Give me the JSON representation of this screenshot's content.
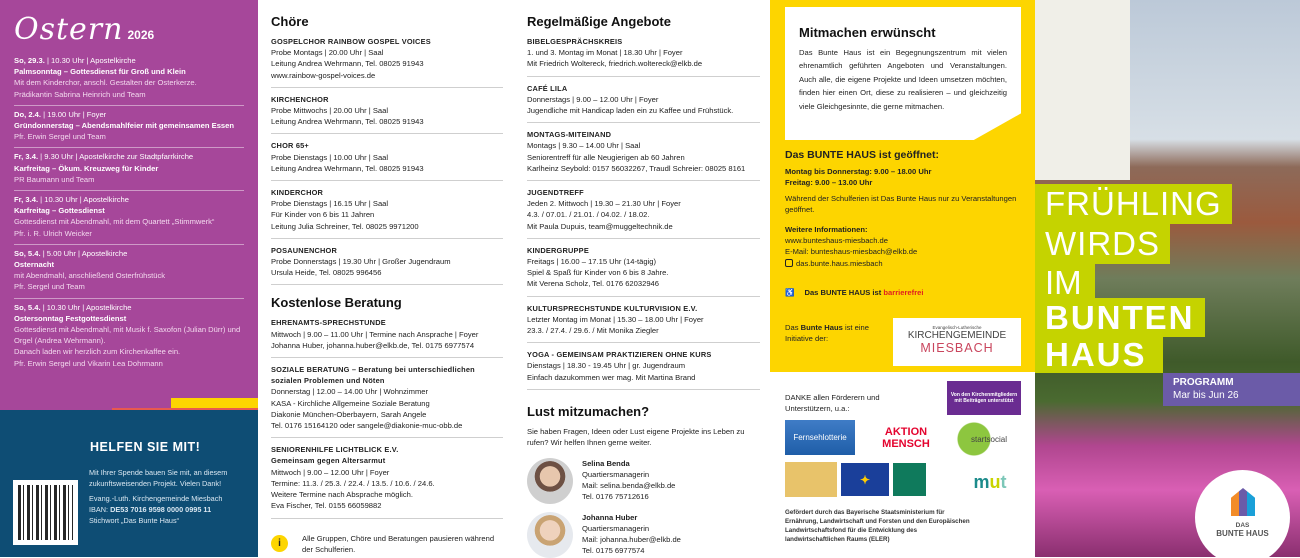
{
  "easter": {
    "title": "Ostern",
    "year": "2026",
    "events": [
      {
        "when": "So, 29.3.",
        "time": "10.30 Uhr",
        "place": "Apostelkirche",
        "title": "Palmsonntag – Gottesdienst für Groß und Klein",
        "lines": [
          "Mit dem Kinderchor, anschl. Gestalten der Osterkerze.",
          "Prädikantin Sabrina Heinrich und Team"
        ]
      },
      {
        "when": "Do, 2.4.",
        "time": "19.00 Uhr",
        "place": "Foyer",
        "title": "Gründonnerstag  – Abendsmahlfeier mit gemeinsamen Essen",
        "lines": [
          "Pfr. Erwin Sergel und Team"
        ]
      },
      {
        "when": "Fr, 3.4.",
        "time": "9.30 Uhr",
        "place": "Apostelkirche zur Stadtpfarrkirche",
        "title": "Karfreitag – Ökum. Kreuzweg für Kinder",
        "lines": [
          "PR Baumann und Team"
        ]
      },
      {
        "when": "Fr, 3.4.",
        "time": "10.30 Uhr",
        "place": "Apostelkirche",
        "title": "Karfreitag – Gottesdienst",
        "lines": [
          "Gottesdienst mit Abendmahl, mit dem Quartett „Stimmwerk“",
          "Pfr. i. R. Ulrich Weicker"
        ]
      },
      {
        "when": "So, 5.4.",
        "time": "5.00 Uhr",
        "place": "Apostelkirche",
        "title": "Osternacht",
        "lines": [
          "mit Abendmahl, anschließend Osterfrühstück",
          "Pfr. Sergel und Team"
        ]
      },
      {
        "when": "So, 5.4.",
        "time": "10.30 Uhr",
        "place": "Apostelkirche",
        "title": "Ostersonntag Festgottesdienst",
        "lines": [
          "Gottesdienst mit Abendmahl, mit Musik f. Saxofon (Julian Dürr) und Orgel (Andrea Wehrmann).",
          "Danach laden wir herzlich zum Kirchenkaffee ein.",
          "Pfr. Erwin Sergel und Vikarin Lea Dohrmann"
        ]
      }
    ]
  },
  "help": {
    "title": "HELFEN SIE MIT!",
    "text1": "Mit Ihrer Spende bauen Sie mit, an diesem zukunftsweisenden Projekt. Vielen Dank!",
    "org": "Evang.-Luth. Kirchengemeinde Miesbach",
    "iban_label": "IBAN: ",
    "iban": "DE53 7016 9598 0000 0995 11",
    "keyword": "Stichwort „Das Bunte Haus“"
  },
  "choirs": {
    "title": "Chöre",
    "items": [
      {
        "t": "GOSPELCHOR RAINBOW GOSPEL VOICES",
        "lines": [
          "Probe Montags | 20.00 Uhr | Saal",
          "Leitung Andrea Wehrmann, Tel. 08025 91943",
          "www.rainbow-gospel-voices.de"
        ]
      },
      {
        "t": "KIRCHENCHOR",
        "lines": [
          "Probe Mittwochs | 20.00 Uhr | Saal",
          "Leitung Andrea Wehrmann, Tel. 08025 91943"
        ]
      },
      {
        "t": "CHOR 65+",
        "lines": [
          "Probe Dienstags | 10.00 Uhr | Saal",
          "Leitung Andrea Wehrmann, Tel. 08025 91943"
        ]
      },
      {
        "t": "KINDERCHOR",
        "lines": [
          "Probe Dienstags | 16.15 Uhr | Saal",
          "Für Kinder von 6 bis 11 Jahren",
          "Leitung Julia Schreiner, Tel. 08025  9971200"
        ]
      },
      {
        "t": "POSAUNENCHOR",
        "lines": [
          "Probe Donnerstags | 19.30 Uhr | Großer Jugendraum",
          "Ursula Heide, Tel. 08025 996456"
        ]
      }
    ]
  },
  "advice": {
    "title": "Kostenlose Beratung",
    "items": [
      {
        "t": "EHRENAMTS-SPRECHSTUNDE",
        "lines": [
          "Mittwoch | 9.00 – 11.00 Uhr | Termine nach Ansprache | Foyer",
          "Johanna Huber, johanna.huber@elkb.de, Tel. 0175 6977574"
        ]
      },
      {
        "t": "SOZIALE BERATUNG – Beratung bei unterschiedlichen sozialen Problemen und Nöten",
        "lines": [
          "Donnerstag | 12.00 – 14.00 Uhr | Wohnzimmer",
          "KASA - Kirchliche Allgemeine Soziale Beratung",
          "Diakonie München-Oberbayern, Sarah Angele",
          "Tel. 0176 15164120 oder sangele@diakonie-muc-obb.de"
        ]
      },
      {
        "t": "SENIORENHILFE LICHTBLICK E.V.",
        "sub": "Gemeinsam gegen Altersarmut",
        "lines": [
          "Mittwoch | 9.00 – 12.00 Uhr | Foyer",
          "Termine: 11.3. / 25.3. / 22.4. / 13.5. / 10.6. / 24.6.",
          "Weitere Termine nach Absprache möglich.",
          "Eva Fischer, Tel. 0155 66059882"
        ]
      }
    ],
    "note": "Alle Gruppen, Chöre und Beratungen pausieren während der Schulferien."
  },
  "regular": {
    "title": "Regelmäßige Angebote",
    "items": [
      {
        "t": "BIBELGESPRÄCHSKREIS",
        "lines": [
          "1. und 3. Montag im Monat | 18.30 Uhr | Foyer",
          "Mit Friedrich Woltereck, friedrich.woltereck@elkb.de"
        ]
      },
      {
        "t": "CAFÉ LILA",
        "lines": [
          "Donnerstags | 9.00 – 12.00 Uhr | Foyer",
          "Jugendliche mit Handicap laden ein zu Kaffee und Frühstück."
        ]
      },
      {
        "t": "MONTAGS-MITEINAND",
        "lines": [
          "Montags | 9.30 – 14.00 Uhr | Saal",
          "Seniorentreff für alle Neugierigen ab 60 Jahren",
          "Karlheinz Seybold: 0157 56032267, Traudl Schreier: 08025 8161"
        ]
      },
      {
        "t": "JUGENDTREFF",
        "lines": [
          "Jeden 2. Mittwoch | 19.30 – 21.30 Uhr | Foyer",
          "4.3. / 07.01. / 21.01. / 04.02. / 18.02.",
          "Mit Paula Dupuis, team@muggeltechnik.de"
        ]
      },
      {
        "t": "KINDERGRUPPE",
        "lines": [
          "Freitags | 16.00 – 17.15 Uhr (14-tägig)",
          "Spiel & Spaß für Kinder von 6 bis 8 Jahre.",
          "Mit Verena Scholz, Tel. 0176 62032946"
        ]
      },
      {
        "t": "KULTURSPRECHSTUNDE KULTURVISION E.V.",
        "lines": [
          "Letzter Montag im Monat | 15.30 – 18.00 Uhr | Foyer",
          "23.3. / 27.4. / 29.6. / Mit Monika Ziegler"
        ]
      },
      {
        "t": "YOGA - GEMEINSAM PRAKTIZIEREN OHNE KURS",
        "lines": [
          "Dienstags | 18.30 - 19.45 Uhr | gr. Jugendraum",
          "Einfach dazukommen wer mag. Mit Martina Brand"
        ]
      }
    ]
  },
  "join": {
    "title": "Lust mitzumachen?",
    "lead": "Sie haben Fragen, Ideen oder Lust eigene Projekte ins Leben zu rufen? Wir helfen Ihnen gerne weiter.",
    "people": [
      {
        "name": "Selina Benda",
        "role": "Quartiersmanagerin",
        "mail": "Mail: selina.benda@elkb.de",
        "tel": "Tel. 0176 75712616"
      },
      {
        "name": "Johanna Huber",
        "role": "Quartiersmanagerin",
        "mail": "Mail: johanna.huber@elkb.de",
        "tel": "Tel. 0175 6977574"
      }
    ]
  },
  "about": {
    "title": "Mitmachen erwünscht",
    "text": "Das Bunte Haus ist ein Begegnungszentrum mit vielen ehrenamtlich geführten Angeboten und Veranstaltungen. Auch alle, die eigene Projekte und Ideen umsetzen möchten, finden hier einen Ort, diese zu realisieren – und gleichzeitig viele Gleichgesinnte, die gerne mitmachen.",
    "open_title": "Das BUNTE HAUS ist geöffnet:",
    "hours1": "Montag bis Donnerstag: 9.00 – 18.00 Uhr",
    "hours2": "Freitag: 9.00 – 13.00 Uhr",
    "holiday": "Während der Schulferien ist Das Bunte Haus nur zu Veranstaltungen geöffnet.",
    "more_title": "Weitere Informationen:",
    "web": "www.bunteshaus-miesbach.de",
    "mail": "E-Mail: bunteshaus-miesbach@elkb.de",
    "instagram": "das.bunte.haus.miesbach",
    "access1": "Das BUNTE HAUS ist ",
    "access2": "barrierefrei",
    "init1": "Das ",
    "init2": "Bunte Haus",
    "init3": " ist eine Initiative der:",
    "kg_small": "Evangelisch-Lutherische",
    "kg1": "KIRCHENGEMEINDE",
    "kg2": "MIESBACH",
    "thanks": "DANKE allen Förderern und Unterstützern, u.a.:",
    "sponsors": [
      "Von den Kirchenmitgliedern mit Beiträgen unterstützt",
      "Fernsehlotterie",
      "AKTION MENSCH",
      "startsocial"
    ],
    "funded": "Gefördert durch das Bayerische Staatsministerium für Ernährung, Landwirtschaft und Forsten und den Europäischen Landwirtschaftsfond für die Entwicklung des landwirtschaftlichen Raums (ELER)"
  },
  "cover": {
    "l1": "FRÜHLING",
    "l2": "WIRDS",
    "l3": "IM",
    "l4": "BUNTEN",
    "l5": "HAUS",
    "prog": "PROGRAMM",
    "range": "Mar bis Jun 26",
    "logo_small": "DAS",
    "logo": "BUNTE HAUS"
  },
  "colors": {
    "purple": "#a6479a",
    "blue": "#0e4d74",
    "yellow": "#fdd500",
    "green": "#c5d300",
    "violet": "#6b5ba8"
  }
}
